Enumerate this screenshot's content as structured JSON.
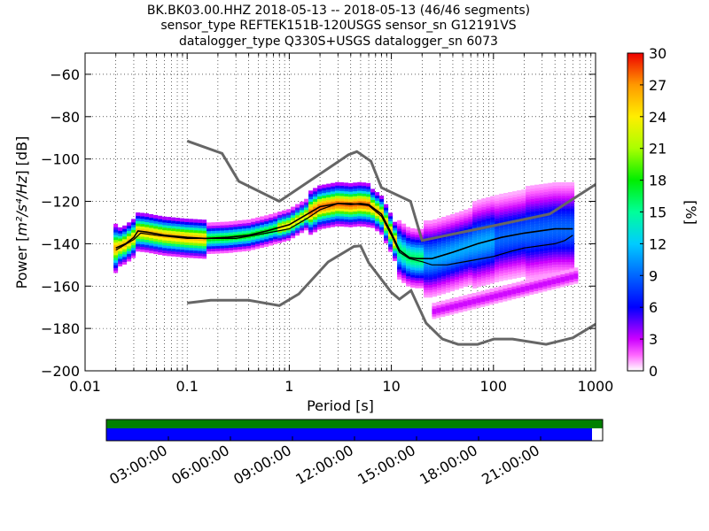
{
  "title_lines": [
    "BK.BK03.00.HHZ   2018-05-13 -- 2018-05-13  (46/46 segments)",
    "sensor_type REFTEK151B-120USGS sensor_sn G12191VS",
    "datalogger_type Q330S+USGS datalogger_sn 6073"
  ],
  "chart_data": {
    "type": "heatmap",
    "xlabel": "Period [s]",
    "ylabel_main": "Power [",
    "ylabel_math": "m²/s⁴/Hz",
    "ylabel_end": "] [dB]",
    "xscale": "log",
    "xlim": [
      0.01,
      1000
    ],
    "ylim": [
      -200,
      -50
    ],
    "x_ticks": [
      0.01,
      0.1,
      1,
      10,
      100,
      1000
    ],
    "x_tick_labels": [
      "0.01",
      "0.1",
      "1",
      "10",
      "100",
      "1000"
    ],
    "y_ticks": [
      -200,
      -180,
      -160,
      -140,
      -120,
      -100,
      -80,
      -60
    ],
    "y_tick_labels": [
      "−200",
      "−180",
      "−160",
      "−140",
      "−120",
      "−100",
      "−80",
      "−60"
    ],
    "grid": true,
    "colorbar": {
      "label": "[%]",
      "min": 0,
      "max": 30,
      "ticks": [
        0,
        3,
        6,
        9,
        12,
        15,
        18,
        21,
        24,
        27,
        30
      ]
    },
    "noise_model_high": [
      [
        0.1,
        -91.5
      ],
      [
        0.22,
        -97.4
      ],
      [
        0.32,
        -110.5
      ],
      [
        0.8,
        -120
      ],
      [
        3.8,
        -98
      ],
      [
        4.6,
        -96.5
      ],
      [
        6.3,
        -101
      ],
      [
        8,
        -113.5
      ],
      [
        15.4,
        -120
      ],
      [
        20,
        -138.5
      ],
      [
        354.8,
        -126
      ],
      [
        1000,
        -112
      ]
    ],
    "noise_model_low": [
      [
        0.1,
        -168
      ],
      [
        0.17,
        -166.7
      ],
      [
        0.4,
        -166.7
      ],
      [
        0.8,
        -169.2
      ],
      [
        1.24,
        -163.7
      ],
      [
        2.4,
        -148.6
      ],
      [
        4.3,
        -141.3
      ],
      [
        5,
        -141
      ],
      [
        6,
        -149
      ],
      [
        10,
        -163
      ],
      [
        12,
        -166.2
      ],
      [
        15.6,
        -162.1
      ],
      [
        21.9,
        -177.5
      ],
      [
        31.6,
        -185
      ],
      [
        45,
        -187.5
      ],
      [
        70,
        -187.5
      ],
      [
        101,
        -185
      ],
      [
        154,
        -185
      ],
      [
        328,
        -187.5
      ],
      [
        600,
        -184.4
      ],
      [
        1000,
        -178
      ]
    ],
    "mode_curve": [
      [
        0.02,
        -142
      ],
      [
        0.025,
        -140
      ],
      [
        0.03,
        -137
      ],
      [
        0.033,
        -134
      ],
      [
        0.04,
        -134.5
      ],
      [
        0.06,
        -136
      ],
      [
        0.1,
        -137
      ],
      [
        0.15,
        -137.5
      ],
      [
        0.25,
        -137
      ],
      [
        0.4,
        -136
      ],
      [
        0.6,
        -134
      ],
      [
        1,
        -131
      ],
      [
        1.5,
        -126
      ],
      [
        2,
        -122.5
      ],
      [
        3,
        -121
      ],
      [
        4,
        -121.5
      ],
      [
        5,
        -121
      ],
      [
        6,
        -121.5
      ],
      [
        8,
        -126
      ],
      [
        10,
        -135
      ],
      [
        12,
        -143
      ],
      [
        15,
        -146.5
      ],
      [
        18,
        -147
      ],
      [
        25,
        -147
      ],
      [
        40,
        -144
      ],
      [
        70,
        -140
      ],
      [
        120,
        -137
      ],
      [
        200,
        -135
      ],
      [
        400,
        -133
      ],
      [
        600,
        -133
      ]
    ],
    "mean_curve": [
      [
        0.02,
        -143
      ],
      [
        0.03,
        -138
      ],
      [
        0.035,
        -135
      ],
      [
        0.05,
        -136
      ],
      [
        0.1,
        -137.5
      ],
      [
        0.3,
        -137.5
      ],
      [
        0.6,
        -135
      ],
      [
        1,
        -133
      ],
      [
        1.5,
        -128
      ],
      [
        2,
        -124
      ],
      [
        3,
        -121
      ],
      [
        4,
        -121
      ],
      [
        6,
        -122
      ],
      [
        8,
        -127
      ],
      [
        10,
        -136
      ],
      [
        12,
        -144
      ],
      [
        15,
        -147
      ],
      [
        20,
        -148.5
      ],
      [
        25,
        -150
      ],
      [
        35,
        -150
      ],
      [
        60,
        -148
      ],
      [
        100,
        -146
      ],
      [
        150,
        -143.5
      ],
      [
        200,
        -142
      ],
      [
        400,
        -140
      ],
      [
        500,
        -138.5
      ],
      [
        600,
        -136
      ]
    ]
  },
  "timeline": {
    "tick_labels": [
      "03:00:00",
      "06:00:00",
      "09:00:00",
      "12:00:00",
      "15:00:00",
      "18:00:00",
      "21:00:00"
    ],
    "coverage_color": "#0000ff",
    "data_color": "#008000"
  }
}
